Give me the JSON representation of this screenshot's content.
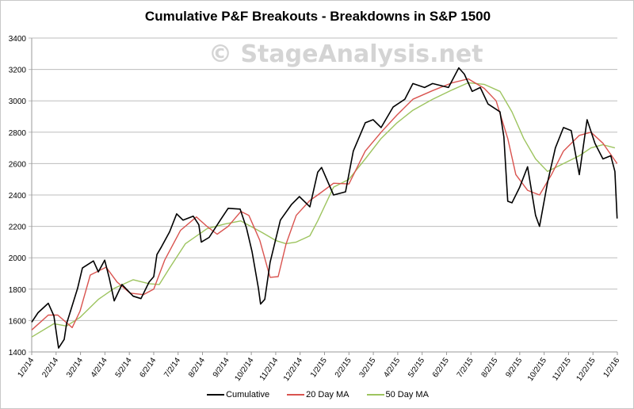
{
  "chart_data": {
    "type": "line",
    "title": "Cumulative P&F Breakouts - Breakdowns in S&P 1500",
    "watermark": "© StageAnalysis.net",
    "xlabel": "",
    "ylabel": "",
    "ylim": [
      1400,
      3400
    ],
    "yticks": [
      "1400",
      "1600",
      "1800",
      "2000",
      "2200",
      "2400",
      "2600",
      "2800",
      "3000",
      "3200",
      "3400"
    ],
    "xticks": [
      "1/2/14",
      "2/2/14",
      "3/2/14",
      "4/2/14",
      "5/2/14",
      "6/2/14",
      "7/2/14",
      "8/2/14",
      "9/2/14",
      "10/2/14",
      "11/2/14",
      "12/2/14",
      "1/2/15",
      "2/2/15",
      "3/2/15",
      "4/2/15",
      "5/2/15",
      "6/2/15",
      "7/2/15",
      "8/2/15",
      "9/2/15",
      "10/2/15",
      "11/2/15",
      "12/2/15",
      "1/2/16"
    ],
    "x_unit": "months since 1/2/14",
    "grid": "horizontal",
    "legend_position": "bottom",
    "series": [
      {
        "name": "Cumulative",
        "color": "#000000",
        "points": [
          [
            0,
            1590
          ],
          [
            0.26,
            1650
          ],
          [
            0.68,
            1710
          ],
          [
            0.91,
            1630
          ],
          [
            1.1,
            1425
          ],
          [
            1.33,
            1480
          ],
          [
            1.43,
            1580
          ],
          [
            1.88,
            1805
          ],
          [
            2.08,
            1935
          ],
          [
            2.53,
            1980
          ],
          [
            2.73,
            1910
          ],
          [
            2.99,
            1985
          ],
          [
            3.18,
            1870
          ],
          [
            3.38,
            1725
          ],
          [
            3.7,
            1830
          ],
          [
            4.16,
            1755
          ],
          [
            4.48,
            1740
          ],
          [
            4.81,
            1845
          ],
          [
            5.0,
            1880
          ],
          [
            5.13,
            2020
          ],
          [
            5.32,
            2070
          ],
          [
            5.65,
            2165
          ],
          [
            5.94,
            2280
          ],
          [
            6.2,
            2240
          ],
          [
            6.62,
            2265
          ],
          [
            6.85,
            2210
          ],
          [
            6.95,
            2100
          ],
          [
            7.27,
            2130
          ],
          [
            7.73,
            2240
          ],
          [
            8.05,
            2315
          ],
          [
            8.54,
            2310
          ],
          [
            8.8,
            2190
          ],
          [
            9.03,
            2040
          ],
          [
            9.29,
            1805
          ],
          [
            9.38,
            1705
          ],
          [
            9.55,
            1735
          ],
          [
            9.77,
            1970
          ],
          [
            10.19,
            2240
          ],
          [
            10.65,
            2340
          ],
          [
            10.97,
            2390
          ],
          [
            11.4,
            2325
          ],
          [
            11.72,
            2545
          ],
          [
            11.88,
            2575
          ],
          [
            12.37,
            2400
          ],
          [
            12.86,
            2420
          ],
          [
            13.18,
            2680
          ],
          [
            13.67,
            2860
          ],
          [
            13.99,
            2880
          ],
          [
            14.32,
            2830
          ],
          [
            14.81,
            2960
          ],
          [
            15.29,
            3010
          ],
          [
            15.62,
            3110
          ],
          [
            16.1,
            3085
          ],
          [
            16.43,
            3110
          ],
          [
            17.08,
            3085
          ],
          [
            17.5,
            3210
          ],
          [
            17.73,
            3170
          ],
          [
            18.05,
            3060
          ],
          [
            18.38,
            3085
          ],
          [
            18.7,
            2980
          ],
          [
            19.19,
            2930
          ],
          [
            19.35,
            2770
          ],
          [
            19.51,
            2360
          ],
          [
            19.68,
            2350
          ],
          [
            20.0,
            2450
          ],
          [
            20.32,
            2580
          ],
          [
            20.65,
            2270
          ],
          [
            20.81,
            2200
          ],
          [
            21.14,
            2480
          ],
          [
            21.46,
            2700
          ],
          [
            21.79,
            2830
          ],
          [
            22.11,
            2810
          ],
          [
            22.44,
            2530
          ],
          [
            22.76,
            2880
          ],
          [
            23.08,
            2730
          ],
          [
            23.41,
            2630
          ],
          [
            23.73,
            2650
          ],
          [
            23.9,
            2550
          ],
          [
            23.99,
            2250
          ]
        ]
      },
      {
        "name": "20 Day MA",
        "color": "#d9534f",
        "points": [
          [
            0,
            1540
          ],
          [
            0.68,
            1635
          ],
          [
            1.07,
            1635
          ],
          [
            1.66,
            1555
          ],
          [
            1.98,
            1660
          ],
          [
            2.4,
            1890
          ],
          [
            3.05,
            1940
          ],
          [
            3.5,
            1845
          ],
          [
            4.03,
            1775
          ],
          [
            4.58,
            1765
          ],
          [
            5.0,
            1800
          ],
          [
            5.45,
            1985
          ],
          [
            6.1,
            2175
          ],
          [
            6.75,
            2260
          ],
          [
            7.18,
            2200
          ],
          [
            7.6,
            2150
          ],
          [
            8.05,
            2200
          ],
          [
            8.57,
            2295
          ],
          [
            8.9,
            2270
          ],
          [
            9.35,
            2110
          ],
          [
            9.77,
            1875
          ],
          [
            10.1,
            1880
          ],
          [
            10.42,
            2085
          ],
          [
            10.84,
            2270
          ],
          [
            11.4,
            2365
          ],
          [
            11.72,
            2400
          ],
          [
            12.37,
            2475
          ],
          [
            13.0,
            2470
          ],
          [
            13.67,
            2680
          ],
          [
            14.32,
            2800
          ],
          [
            14.97,
            2910
          ],
          [
            15.62,
            3010
          ],
          [
            16.43,
            3065
          ],
          [
            17.24,
            3115
          ],
          [
            17.89,
            3140
          ],
          [
            18.54,
            3080
          ],
          [
            19.03,
            3000
          ],
          [
            19.51,
            2760
          ],
          [
            19.84,
            2530
          ],
          [
            20.32,
            2430
          ],
          [
            20.81,
            2400
          ],
          [
            21.3,
            2530
          ],
          [
            21.79,
            2680
          ],
          [
            22.44,
            2780
          ],
          [
            22.92,
            2800
          ],
          [
            23.41,
            2730
          ],
          [
            23.99,
            2600
          ]
        ]
      },
      {
        "name": "50 Day MA",
        "color": "#9dc45f",
        "points": [
          [
            0,
            1495
          ],
          [
            0.91,
            1580
          ],
          [
            1.43,
            1565
          ],
          [
            1.98,
            1620
          ],
          [
            2.73,
            1735
          ],
          [
            3.38,
            1805
          ],
          [
            4.16,
            1860
          ],
          [
            4.81,
            1835
          ],
          [
            5.23,
            1830
          ],
          [
            5.65,
            1935
          ],
          [
            6.3,
            2090
          ],
          [
            7.18,
            2185
          ],
          [
            7.92,
            2215
          ],
          [
            8.57,
            2235
          ],
          [
            9.45,
            2160
          ],
          [
            10.0,
            2110
          ],
          [
            10.42,
            2090
          ],
          [
            10.84,
            2100
          ],
          [
            11.4,
            2140
          ],
          [
            11.72,
            2235
          ],
          [
            12.37,
            2450
          ],
          [
            13.0,
            2500
          ],
          [
            13.67,
            2630
          ],
          [
            14.32,
            2760
          ],
          [
            14.97,
            2860
          ],
          [
            15.62,
            2940
          ],
          [
            16.43,
            3010
          ],
          [
            17.24,
            3070
          ],
          [
            17.89,
            3115
          ],
          [
            18.54,
            3105
          ],
          [
            19.19,
            3060
          ],
          [
            19.68,
            2930
          ],
          [
            20.16,
            2760
          ],
          [
            20.65,
            2630
          ],
          [
            21.14,
            2550
          ],
          [
            21.79,
            2600
          ],
          [
            22.44,
            2650
          ],
          [
            22.92,
            2700
          ],
          [
            23.41,
            2720
          ],
          [
            23.9,
            2700
          ]
        ]
      }
    ]
  }
}
